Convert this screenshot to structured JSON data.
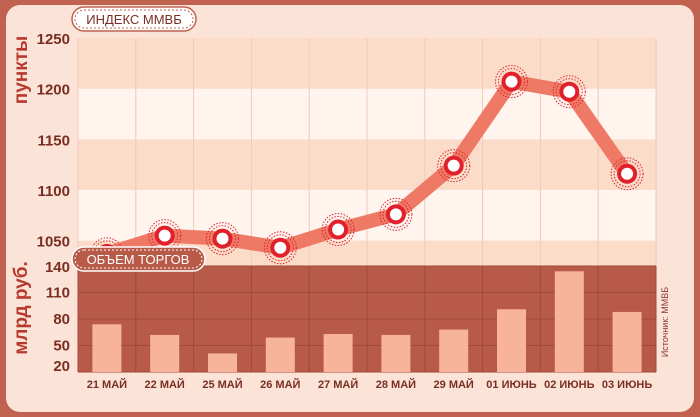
{
  "chart_data": [
    {
      "type": "line",
      "title": "ИНДЕКС ММВБ",
      "ylabel": "пункты",
      "categories": [
        "21 МАЙ",
        "22 МАЙ",
        "25 МАЙ",
        "26 МАЙ",
        "27 МАЙ",
        "28 МАЙ",
        "29 МАЙ",
        "01 ИЮНЬ",
        "02 ИЮНЬ",
        "03 ИЮНЬ"
      ],
      "values": [
        1037,
        1055,
        1052,
        1043,
        1061,
        1076,
        1124,
        1207,
        1197,
        1116
      ],
      "yticks": [
        1050,
        1100,
        1150,
        1200,
        1250
      ],
      "ylim": [
        1025,
        1250
      ],
      "colors": {
        "line": "#ee7a66",
        "marker": "#e0202a"
      }
    },
    {
      "type": "bar",
      "title": "ОБЪЕМ ТОРГОВ",
      "ylabel": "млрд руб.",
      "categories": [
        "21 МАЙ",
        "22 МАЙ",
        "25 МАЙ",
        "26 МАЙ",
        "27 МАЙ",
        "28 МАЙ",
        "29 МАЙ",
        "01 ИЮНЬ",
        "02 ИЮНЬ",
        "03 ИЮНЬ"
      ],
      "values": [
        74,
        62,
        41,
        59,
        63,
        62,
        68,
        91,
        134,
        88
      ],
      "yticks": [
        20,
        50,
        80,
        110,
        140
      ],
      "ylim": [
        20,
        140
      ],
      "colors": {
        "bar": "#f7b49a",
        "band": "#b85a48"
      }
    }
  ],
  "source_note": "Источник: ММВБ"
}
